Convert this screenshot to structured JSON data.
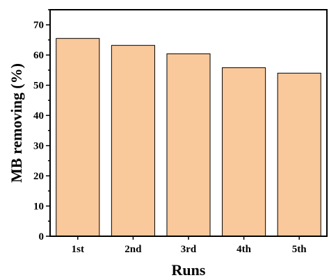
{
  "chart_data": {
    "type": "bar",
    "categories": [
      "1st",
      "2nd",
      "3rd",
      "4th",
      "5th"
    ],
    "values": [
      65.5,
      63.2,
      60.4,
      55.8,
      54.0
    ],
    "title": "",
    "xlabel": "Runs",
    "ylabel": "MB removing (%)",
    "ylim": [
      0,
      75
    ],
    "yticks": [
      0,
      10,
      20,
      30,
      40,
      50,
      60,
      70
    ],
    "grid": false,
    "bar_color": "#F9C89B",
    "edge_color": "#000000"
  }
}
